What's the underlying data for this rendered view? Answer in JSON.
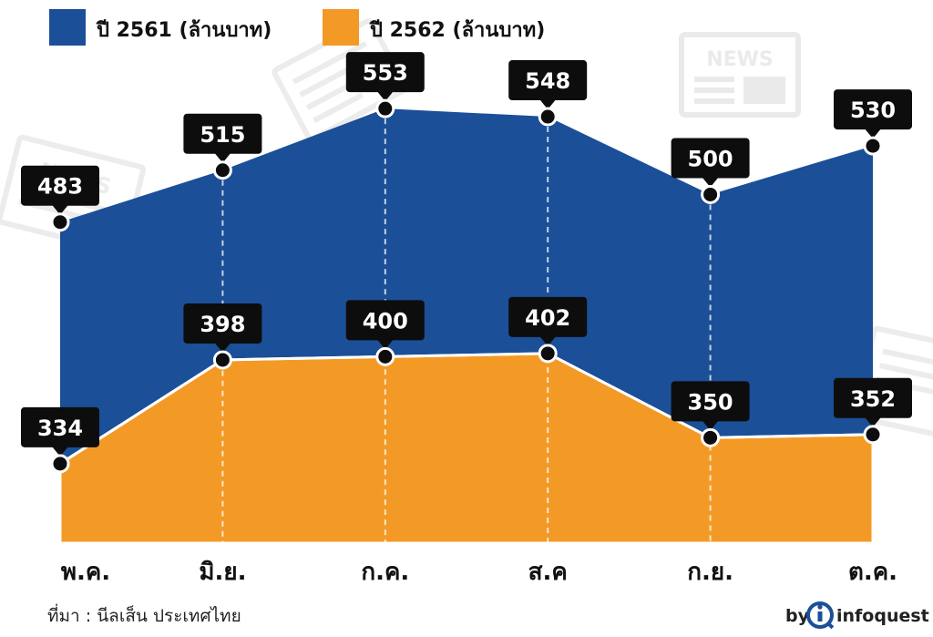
{
  "chart_data": {
    "type": "area",
    "categories": [
      "พ.ค.",
      "มิ.ย.",
      "ก.ค.",
      "ส.ค",
      "ก.ย.",
      "ต.ค."
    ],
    "series": [
      {
        "name": "ปี 2561 (ล้านบาท)",
        "values": [
          483,
          515,
          553,
          548,
          500,
          530
        ],
        "color": "#1b4f98"
      },
      {
        "name": "ปี 2562 (ล้านบาท)",
        "values": [
          334,
          398,
          400,
          402,
          350,
          352
        ],
        "color": "#f39a26"
      }
    ],
    "ylim": [
      285,
      575
    ],
    "grid": "dashed vertical lines at each category",
    "legend_position": "top-left"
  },
  "footer": {
    "source": "ที่มา : นีลเส็น ประเทศไทย",
    "brand_prefix": "by",
    "brand_name": "infoquest"
  },
  "colors": {
    "label_box": "#0d0d0d",
    "point": "#0d0d0d",
    "watermark": "#e6e6e6"
  }
}
